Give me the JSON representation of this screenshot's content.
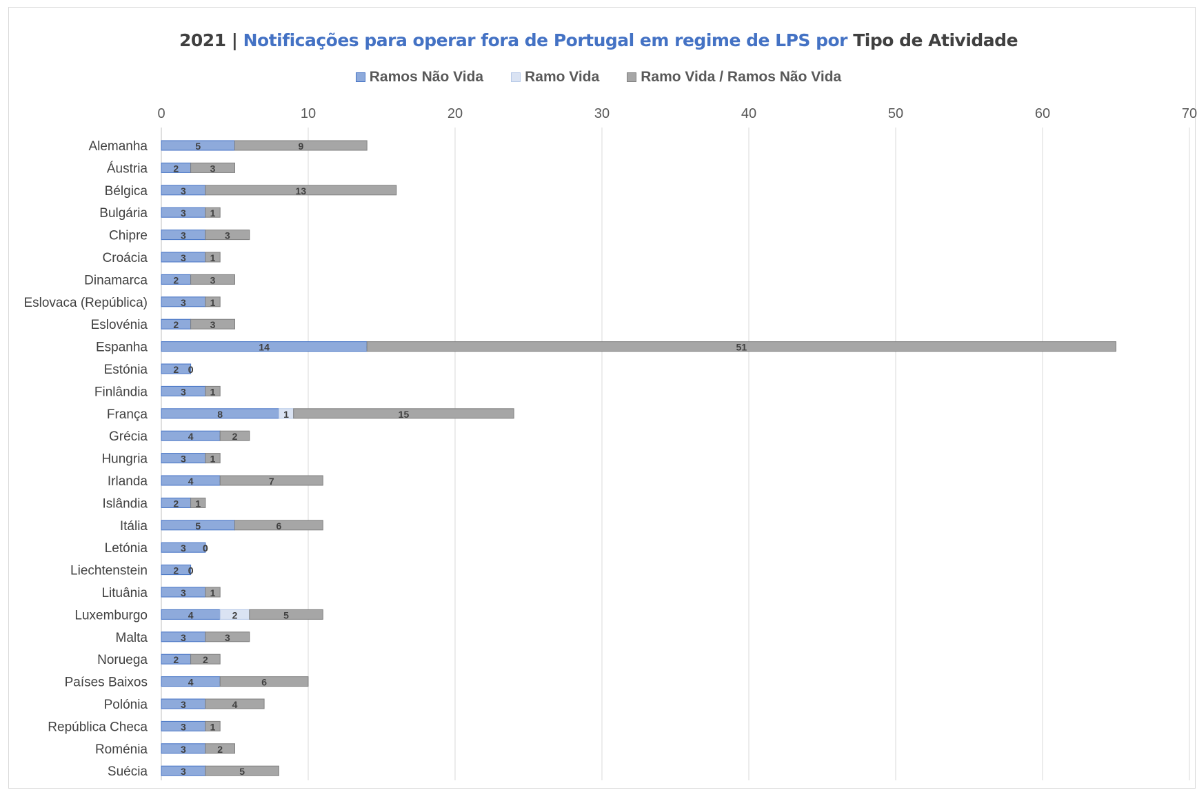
{
  "chart_data": {
    "type": "bar",
    "orientation": "horizontal",
    "stacked": true,
    "title": {
      "year": "2021",
      "separator": " | ",
      "main": "Notificações para operar fora de Portugal em regime de LPS  por",
      "tail": " Tipo de Atividade"
    },
    "xlim": [
      0,
      70
    ],
    "x_ticks": [
      "0",
      "10",
      "20",
      "30",
      "40",
      "50",
      "60",
      "70"
    ],
    "grid": true,
    "legend_position": "top",
    "categories": [
      "Alemanha",
      "Áustria",
      "Bélgica",
      "Bulgária",
      "Chipre",
      "Croácia",
      "Dinamarca",
      "Eslovaca (República)",
      "Eslovénia",
      "Espanha",
      "Estónia",
      "Finlândia",
      "França",
      "Grécia",
      "Hungria",
      "Irlanda",
      "Islândia",
      "Itália",
      "Letónia",
      "Liechtenstein",
      "Lituânia",
      "Luxemburgo",
      "Malta",
      "Noruega",
      "Países Baixos",
      "Polónia",
      "República Checa",
      "Roménia",
      "Suécia"
    ],
    "series": [
      {
        "name": "Ramos Não Vida",
        "color": "#8eaadb",
        "border": "#4472c4",
        "values": [
          5,
          2,
          3,
          3,
          3,
          3,
          2,
          3,
          2,
          14,
          2,
          3,
          8,
          4,
          3,
          4,
          2,
          5,
          3,
          2,
          3,
          4,
          3,
          2,
          4,
          3,
          3,
          3,
          3
        ]
      },
      {
        "name": "Ramo Vida",
        "color": "#dae3f3",
        "border": "#b4c7e7",
        "values": [
          0,
          0,
          0,
          0,
          0,
          0,
          0,
          0,
          0,
          0,
          0,
          0,
          1,
          0,
          0,
          0,
          0,
          0,
          0,
          0,
          0,
          2,
          0,
          0,
          0,
          0,
          0,
          0,
          0
        ]
      },
      {
        "name": "Ramo Vida / Ramos Não Vida",
        "color": "#a6a6a6",
        "border": "#7f7f7f",
        "values": [
          9,
          3,
          13,
          1,
          3,
          1,
          3,
          1,
          3,
          51,
          0,
          1,
          15,
          2,
          1,
          7,
          1,
          6,
          0,
          0,
          1,
          5,
          3,
          2,
          6,
          4,
          1,
          2,
          5
        ]
      }
    ]
  }
}
